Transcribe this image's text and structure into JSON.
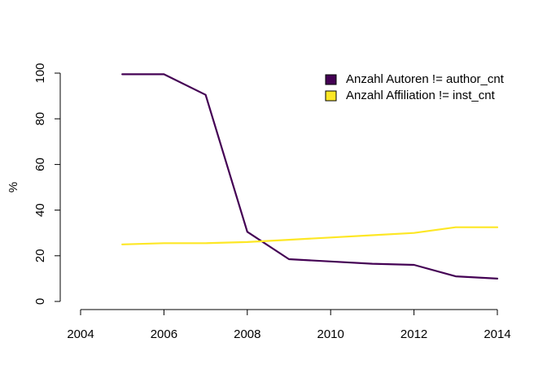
{
  "chart_data": {
    "type": "line",
    "title": "",
    "xlabel": "",
    "ylabel": "%",
    "xlim": [
      2004,
      2014
    ],
    "ylim": [
      0,
      100
    ],
    "x_ticks": [
      2004,
      2006,
      2008,
      2010,
      2012,
      2014
    ],
    "y_ticks": [
      0,
      20,
      40,
      60,
      80,
      100
    ],
    "grid": false,
    "legend_position": "top-right",
    "x": [
      2005,
      2006,
      2007,
      2008,
      2009,
      2010,
      2011,
      2012,
      2013,
      2014
    ],
    "series": [
      {
        "name": "Anzahl Autoren != author_cnt",
        "color": "#440154",
        "values": [
          99.5,
          99.5,
          90.5,
          30.5,
          18.5,
          17.5,
          16.5,
          16,
          11,
          10
        ]
      },
      {
        "name": "Anzahl Affiliation != inst_cnt",
        "color": "#FDE725",
        "values": [
          25,
          25.5,
          25.5,
          26,
          27,
          28,
          29,
          30,
          32.5,
          32.5
        ]
      }
    ]
  }
}
